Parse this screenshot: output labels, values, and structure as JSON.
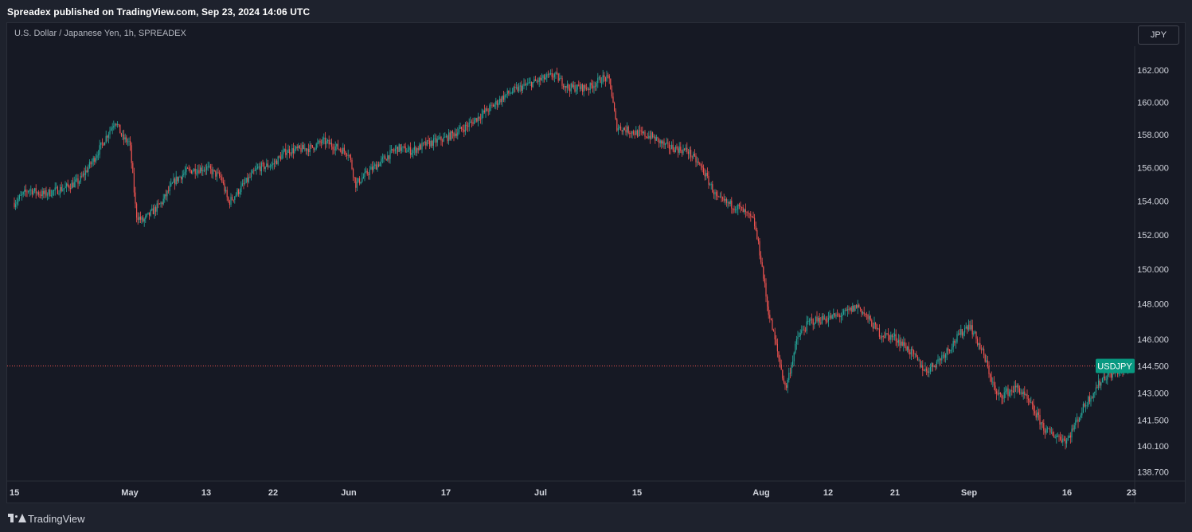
{
  "header": {
    "published_text": "Spreadex published on TradingView.com, Sep 23, 2024 14:06 UTC"
  },
  "legend": {
    "symbol_text": "U.S. Dollar / Japanese Yen, 1h, SPREADEX"
  },
  "toolbar": {
    "currency_label": "JPY"
  },
  "footer": {
    "brand": "TradingView"
  },
  "colors": {
    "up": "#26a69a",
    "down": "#ef5350",
    "background": "#161924",
    "axis_text": "#d1d4dc",
    "price_line": "#ef5350",
    "badge": "#089981"
  },
  "chart_data": {
    "type": "line",
    "title": "U.S. Dollar / Japanese Yen, 1h, SPREADEX",
    "chart_style": "candlestick",
    "interval": "1h",
    "current_price_label": "USDJPY",
    "current_price_value": 144.5,
    "y_axis": {
      "ticks": [
        162.0,
        160.0,
        158.0,
        156.0,
        154.0,
        152.0,
        150.0,
        148.0,
        146.0,
        144.5,
        143.0,
        141.5,
        140.1,
        138.7
      ],
      "tick_labels": [
        "162.000",
        "160.000",
        "158.000",
        "156.000",
        "154.000",
        "152.000",
        "150.000",
        "148.000",
        "146.000",
        "144.500",
        "143.000",
        "141.500",
        "140.100",
        "138.700"
      ],
      "scale": "log"
    },
    "x_axis": {
      "tick_labels": [
        "15",
        "May",
        "13",
        "22",
        "Jun",
        "17",
        "Jul",
        "15",
        "Aug",
        "12",
        "21",
        "Sep",
        "16",
        "23"
      ],
      "tick_dates": [
        "2024-04-15",
        "2024-05-01",
        "2024-05-13",
        "2024-05-22",
        "2024-06-03",
        "2024-06-17",
        "2024-07-01",
        "2024-07-15",
        "2024-08-01",
        "2024-08-12",
        "2024-08-21",
        "2024-09-02",
        "2024-09-16",
        "2024-09-23"
      ]
    },
    "grid": false,
    "series": [
      {
        "x": [
          "2024-04-15",
          "2024-04-17",
          "2024-04-19",
          "2024-04-22",
          "2024-04-24",
          "2024-04-26",
          "2024-04-29",
          "2024-04-30",
          "2024-05-01",
          "2024-05-02",
          "2024-05-03",
          "2024-05-06",
          "2024-05-08",
          "2024-05-10",
          "2024-05-13",
          "2024-05-15",
          "2024-05-16",
          "2024-05-20",
          "2024-05-22",
          "2024-05-24",
          "2024-05-28",
          "2024-05-30",
          "2024-06-03",
          "2024-06-04",
          "2024-06-06",
          "2024-06-10",
          "2024-06-12",
          "2024-06-14",
          "2024-06-17",
          "2024-06-20",
          "2024-06-24",
          "2024-06-26",
          "2024-06-28",
          "2024-07-01",
          "2024-07-03",
          "2024-07-05",
          "2024-07-08",
          "2024-07-10",
          "2024-07-11",
          "2024-07-12",
          "2024-07-15",
          "2024-07-17",
          "2024-07-19",
          "2024-07-22",
          "2024-07-24",
          "2024-07-26",
          "2024-07-29",
          "2024-07-31",
          "2024-08-01",
          "2024-08-02",
          "2024-08-05",
          "2024-08-07",
          "2024-08-09",
          "2024-08-12",
          "2024-08-14",
          "2024-08-16",
          "2024-08-19",
          "2024-08-21",
          "2024-08-23",
          "2024-08-26",
          "2024-08-28",
          "2024-08-30",
          "2024-09-02",
          "2024-09-04",
          "2024-09-06",
          "2024-09-09",
          "2024-09-11",
          "2024-09-13",
          "2024-09-16",
          "2024-09-18",
          "2024-09-20",
          "2024-09-23"
        ],
        "y": [
          153.9,
          154.7,
          154.4,
          154.8,
          155.2,
          156.5,
          158.9,
          157.8,
          157.5,
          153.2,
          152.8,
          153.9,
          155.2,
          155.8,
          156.0,
          155.4,
          153.9,
          156.0,
          156.2,
          157.0,
          157.2,
          157.6,
          156.9,
          155.0,
          155.8,
          157.2,
          157.0,
          157.4,
          157.8,
          158.5,
          159.8,
          160.5,
          160.9,
          161.4,
          161.7,
          160.9,
          160.9,
          161.5,
          161.4,
          158.5,
          158.1,
          157.9,
          157.3,
          157.0,
          155.9,
          154.1,
          153.6,
          152.8,
          150.5,
          147.9,
          143.2,
          146.1,
          147.0,
          147.2,
          147.4,
          147.9,
          146.3,
          146.1,
          145.5,
          144.2,
          144.8,
          145.6,
          146.9,
          145.2,
          142.8,
          143.3,
          142.2,
          140.9,
          140.4,
          142.4,
          143.9,
          144.5
        ]
      }
    ]
  }
}
